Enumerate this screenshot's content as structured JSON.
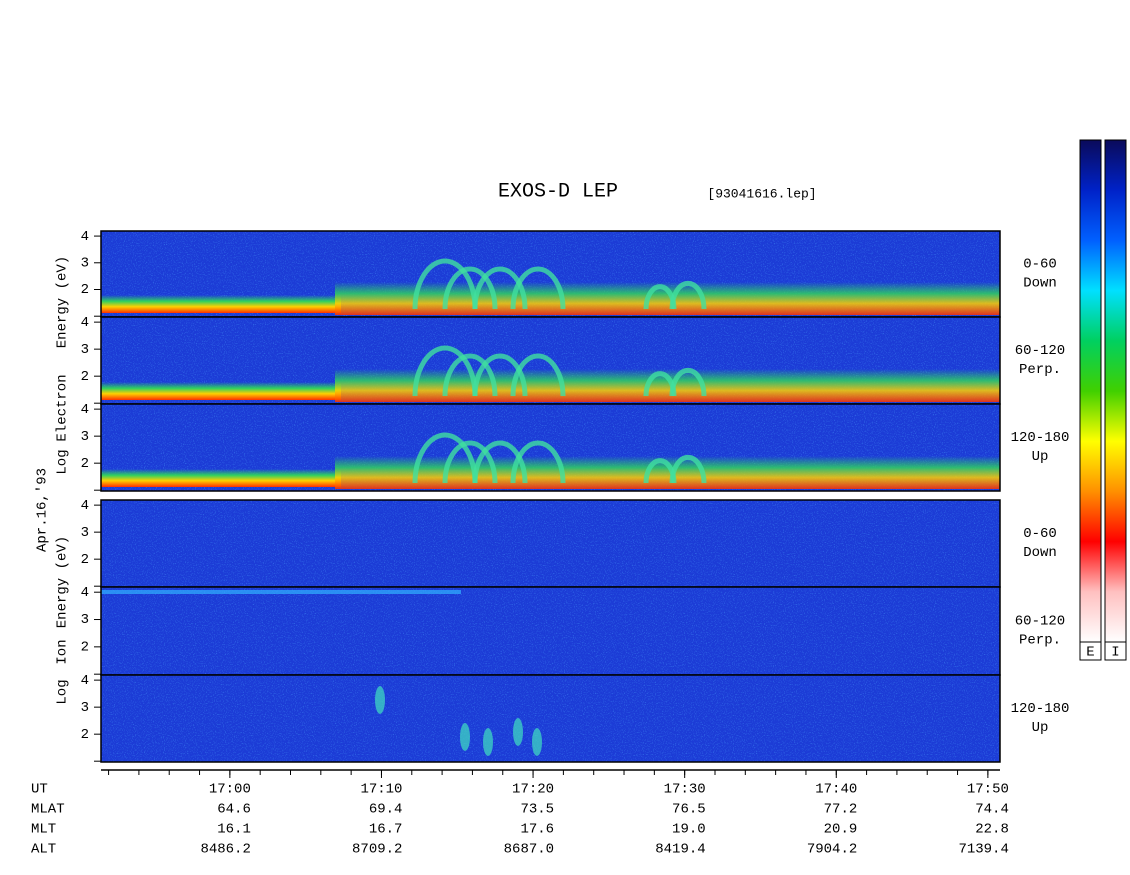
{
  "chart_data": {
    "type": "spectrogram",
    "title": "EXOS-D LEP",
    "subtitle": "[93041616.lep]",
    "left_labels": {
      "electron": [
        "Log",
        "Electron",
        "Energy (eV)"
      ],
      "date": "Apr.16,'93",
      "ion": [
        "Log",
        "Ion",
        "Energy (eV)"
      ]
    },
    "panels": [
      {
        "species": "electron",
        "label": [
          "0-60",
          "Down"
        ]
      },
      {
        "species": "electron",
        "label": [
          "60-120",
          "Perp."
        ]
      },
      {
        "species": "electron",
        "label": [
          "120-180",
          "Up"
        ]
      },
      {
        "species": "ion",
        "label": [
          "0-60",
          "Down"
        ]
      },
      {
        "species": "ion",
        "label": [
          "60-120",
          "Perp."
        ]
      },
      {
        "species": "ion",
        "label": [
          "120-180",
          "Up"
        ]
      }
    ],
    "ylim": [
      0.97,
      4.19
    ],
    "yticks": [
      {
        "value": 1,
        "label": null
      },
      2,
      3,
      4
    ],
    "xlabel": "UT",
    "xlim": [
      1011.5,
      1070.8
    ],
    "xticks": [
      {
        "value": 1020,
        "label": "17:00"
      },
      {
        "value": 1030,
        "label": "17:10"
      },
      {
        "value": 1040,
        "label": "17:20"
      },
      {
        "value": 1050,
        "label": "17:30"
      },
      {
        "value": 1060,
        "label": "17:40"
      },
      {
        "value": 1070,
        "label": "17:50"
      }
    ],
    "ephemeris": [
      {
        "name": "MLAT",
        "values": [
          "64.6",
          "69.4",
          "73.5",
          "76.5",
          "77.2",
          "74.4"
        ]
      },
      {
        "name": "MLT",
        "values": [
          "16.1",
          "16.7",
          "17.6",
          "19.0",
          "20.9",
          "22.8"
        ]
      },
      {
        "name": "ALT",
        "values": [
          "8486.2",
          "8709.2",
          "8687.0",
          "8419.4",
          "7904.2",
          "7139.4"
        ]
      }
    ],
    "colorbar": {
      "labels": [
        "E",
        "I"
      ],
      "colors": [
        "#0a0a5a",
        "#0022c8",
        "#0060ff",
        "#00e0ff",
        "#00d060",
        "#40d000",
        "#ffff00",
        "#ff9000",
        "#ff0000",
        "#ffc0c0",
        "#ffffff"
      ]
    }
  }
}
